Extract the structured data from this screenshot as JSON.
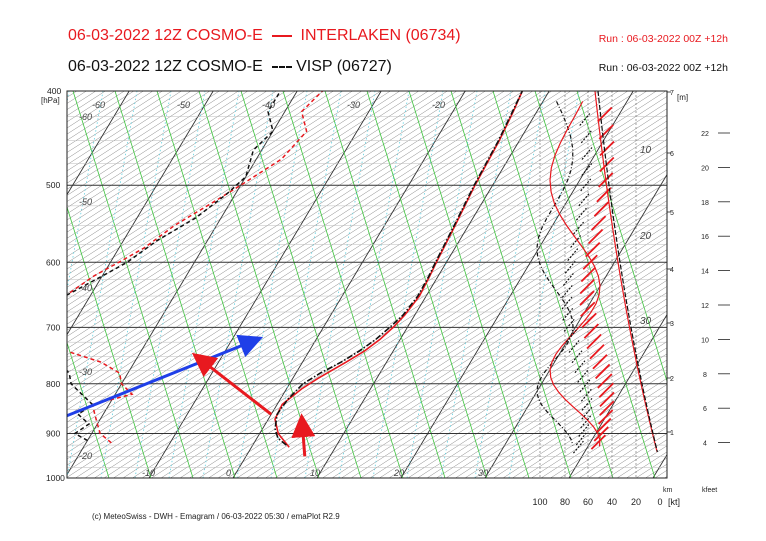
{
  "header": {
    "title_red": "06-03-2022 12Z COSMO-E",
    "station_red": "INTERLAKEN (06734)",
    "title_black": "06-03-2022 12Z COSMO-E",
    "station_black": "VISP (06727)",
    "run_red": "Run : 06-03-2022 00Z +12h",
    "run_black": "Run : 06-03-2022 00Z +12h"
  },
  "footer": {
    "credit": "(c) MeteoSwiss - DWH - Emagram / 06-03-2022  05:30 / emaPlot R2.9"
  },
  "chart_data": {
    "type": "line",
    "subtype": "emagram",
    "y_axis": {
      "label": "[hPa]",
      "ticks": [
        400,
        500,
        600,
        700,
        800,
        900,
        1000
      ],
      "scale": "log",
      "range": [
        400,
        1000
      ]
    },
    "x_axis": {
      "ticks": [
        -10,
        0,
        10,
        20,
        30
      ],
      "range": [
        -45,
        40
      ]
    },
    "isotherm_labels": [
      -60,
      -50,
      -40,
      -30,
      -20
    ],
    "upper_label_row": [
      -60,
      -50,
      -40,
      -30,
      -20
    ],
    "left_labels": [
      -60,
      -50,
      -40,
      -30,
      -20
    ],
    "km_axis": {
      "label": "[m]",
      "bottom_label": "km",
      "ticks": [
        1,
        2,
        3,
        4,
        5,
        6,
        7
      ]
    },
    "kfeet_axis": {
      "label": "kfeet",
      "ticks": [
        4,
        6,
        8,
        10,
        12,
        14,
        16,
        18,
        20,
        22
      ]
    },
    "wind_axis": {
      "label": "[kt]",
      "ticks": [
        100,
        80,
        60,
        40,
        20,
        0
      ]
    },
    "isentrope_labels": [
      10,
      20,
      30
    ],
    "series": [
      {
        "name": "INTERLAKEN (06734)",
        "color": "#e8191f",
        "temperature": [
          [
            930,
            4.5
          ],
          [
            900,
            2.2
          ],
          [
            870,
            0.8
          ],
          [
            840,
            0.6
          ],
          [
            810,
            1.8
          ],
          [
            790,
            3.0
          ],
          [
            760,
            5.2
          ],
          [
            740,
            6.6
          ],
          [
            720,
            7.6
          ],
          [
            700,
            8.3
          ],
          [
            680,
            8.8
          ],
          [
            650,
            9.2
          ],
          [
            620,
            9.0
          ],
          [
            600,
            8.8
          ],
          [
            550,
            8.4
          ],
          [
            500,
            7.9
          ],
          [
            450,
            7.6
          ],
          [
            420,
            7.2
          ],
          [
            400,
            6.8
          ]
        ],
        "dewpoint": [
          [
            920,
            -17
          ],
          [
            900,
            -19
          ],
          [
            880,
            -20
          ],
          [
            860,
            -21
          ],
          [
            840,
            -22
          ],
          [
            820,
            -18
          ],
          [
            800,
            -20
          ],
          [
            780,
            -21
          ],
          [
            760,
            -24
          ],
          [
            740,
            -29
          ],
          [
            720,
            -33
          ],
          [
            700,
            -34
          ],
          [
            680,
            -34
          ],
          [
            650,
            -33
          ],
          [
            620,
            -31
          ],
          [
            600,
            -29
          ],
          [
            580,
            -27
          ],
          [
            550,
            -25
          ],
          [
            520,
            -22
          ],
          [
            500,
            -20
          ],
          [
            470,
            -17
          ],
          [
            440,
            -16
          ],
          [
            420,
            -18
          ],
          [
            400,
            -17
          ]
        ]
      },
      {
        "name": "VISP (06727)",
        "color": "#111111",
        "temperature": [
          [
            925,
            4.0
          ],
          [
            910,
            2.5
          ],
          [
            890,
            1.5
          ],
          [
            860,
            0.7
          ],
          [
            830,
            0.9
          ],
          [
            800,
            1.6
          ],
          [
            780,
            2.9
          ],
          [
            760,
            4.6
          ],
          [
            740,
            6.0
          ],
          [
            720,
            7.1
          ],
          [
            700,
            7.9
          ],
          [
            680,
            8.6
          ],
          [
            650,
            9.0
          ],
          [
            620,
            8.9
          ],
          [
            600,
            8.7
          ],
          [
            550,
            8.3
          ],
          [
            500,
            7.8
          ],
          [
            450,
            7.5
          ],
          [
            420,
            7.1
          ],
          [
            400,
            6.8
          ]
        ],
        "dewpoint": [
          [
            915,
            -20
          ],
          [
            900,
            -22
          ],
          [
            880,
            -21
          ],
          [
            860,
            -23
          ],
          [
            840,
            -22
          ],
          [
            820,
            -24
          ],
          [
            800,
            -26
          ],
          [
            780,
            -27
          ],
          [
            760,
            -29
          ],
          [
            740,
            -32
          ],
          [
            720,
            -34
          ],
          [
            700,
            -35
          ],
          [
            680,
            -34
          ],
          [
            650,
            -33
          ],
          [
            620,
            -30
          ],
          [
            600,
            -28
          ],
          [
            570,
            -26
          ],
          [
            540,
            -23
          ],
          [
            510,
            -21
          ],
          [
            490,
            -20
          ],
          [
            460,
            -21
          ],
          [
            440,
            -20
          ],
          [
            420,
            -22
          ],
          [
            400,
            -22
          ]
        ]
      }
    ],
    "arrows": [
      {
        "color": "#1f3fe8",
        "from": {
          "p": 870,
          "x": -25
        },
        "to": {
          "p": 720,
          "x": -7
        }
      },
      {
        "color": "#e8191f",
        "from": {
          "p": 860,
          "x": 0
        },
        "to": {
          "p": 750,
          "x": -13
        }
      },
      {
        "color": "#e8191f",
        "from": {
          "p": 950,
          "x": 7
        },
        "to": {
          "p": 870,
          "x": 4
        }
      }
    ]
  }
}
